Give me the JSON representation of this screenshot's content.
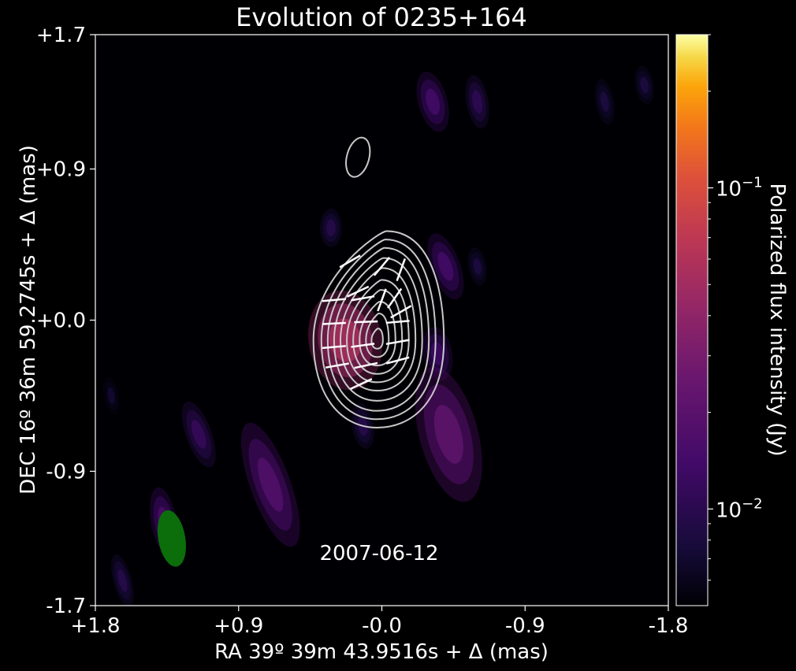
{
  "chart_data": {
    "type": "heatmap",
    "title": "Evolution of 0235+164",
    "xlabel": "RA 39º 39m 43.9516s + Δ (mas)",
    "ylabel": "DEC 16º 36m 59.2745s + Δ (mas)",
    "xlim": [
      1.8,
      -1.8
    ],
    "ylim": [
      -1.7,
      1.7
    ],
    "x_ticks": [
      1.8,
      0.9,
      0.0,
      -0.9,
      -1.8
    ],
    "x_tick_labels": [
      "+1.8",
      "+0.9",
      "-0.0",
      "-0.9",
      "-1.8"
    ],
    "y_ticks": [
      1.7,
      0.9,
      0.0,
      -0.9,
      -1.7
    ],
    "y_tick_labels": [
      "+1.7",
      "+0.9",
      "+0.0",
      "-0.9",
      "-1.7"
    ],
    "date_label": "2007-06-12",
    "colorbar": {
      "label": "Polarized flux intensity (Jy)",
      "scale": "log",
      "range": [
        0.005,
        0.3
      ],
      "colormap": "inferno",
      "tick_labels": [
        {
          "value": 0.1,
          "base": "10",
          "exp": "−1"
        },
        {
          "value": 0.01,
          "base": "10",
          "exp": "−2"
        }
      ]
    },
    "polarized_blobs": [
      {
        "x": 0.23,
        "y": -0.12,
        "rx": 0.2,
        "ry": 0.26,
        "angle": -10,
        "peak": 0.045
      },
      {
        "x": -0.32,
        "y": 1.3,
        "rx": 0.08,
        "ry": 0.16,
        "angle": -15,
        "peak": 0.012
      },
      {
        "x": -0.6,
        "y": 1.3,
        "rx": 0.06,
        "ry": 0.14,
        "angle": -10,
        "peak": 0.009
      },
      {
        "x": -1.4,
        "y": 1.3,
        "rx": 0.05,
        "ry": 0.12,
        "angle": -10,
        "peak": 0.007
      },
      {
        "x": -1.65,
        "y": 1.4,
        "rx": 0.05,
        "ry": 0.1,
        "angle": -10,
        "peak": 0.007
      },
      {
        "x": -0.4,
        "y": 0.32,
        "rx": 0.08,
        "ry": 0.18,
        "angle": -20,
        "peak": 0.012
      },
      {
        "x": -0.35,
        "y": -0.2,
        "rx": 0.08,
        "ry": 0.14,
        "angle": -10,
        "peak": 0.011
      },
      {
        "x": -0.42,
        "y": -0.68,
        "rx": 0.16,
        "ry": 0.36,
        "angle": -15,
        "peak": 0.018
      },
      {
        "x": 0.12,
        "y": -0.63,
        "rx": 0.06,
        "ry": 0.12,
        "angle": -10,
        "peak": 0.008
      },
      {
        "x": 1.15,
        "y": -0.68,
        "rx": 0.07,
        "ry": 0.18,
        "angle": -20,
        "peak": 0.01
      },
      {
        "x": 0.7,
        "y": -0.98,
        "rx": 0.11,
        "ry": 0.34,
        "angle": -20,
        "peak": 0.015
      },
      {
        "x": 1.37,
        "y": -1.2,
        "rx": 0.07,
        "ry": 0.18,
        "angle": -10,
        "peak": 0.013
      },
      {
        "x": 1.63,
        "y": -1.55,
        "rx": 0.05,
        "ry": 0.14,
        "angle": -15,
        "peak": 0.008
      },
      {
        "x": 1.7,
        "y": -0.45,
        "rx": 0.04,
        "ry": 0.1,
        "angle": -10,
        "peak": 0.006
      },
      {
        "x": 0.32,
        "y": 0.55,
        "rx": 0.06,
        "ry": 0.1,
        "angle": 0,
        "peak": 0.008
      },
      {
        "x": -0.6,
        "y": 0.32,
        "rx": 0.05,
        "ry": 0.1,
        "angle": -10,
        "peak": 0.007
      }
    ],
    "total_intensity_contours": {
      "center": {
        "x": 0.03,
        "y": -0.12
      },
      "levels": [
        {
          "rx": 0.4,
          "ry_up": 0.65,
          "ry_down": 0.52
        },
        {
          "rx": 0.35,
          "ry_up": 0.6,
          "ry_down": 0.47
        },
        {
          "rx": 0.31,
          "ry_up": 0.55,
          "ry_down": 0.42
        },
        {
          "rx": 0.27,
          "ry_up": 0.49,
          "ry_down": 0.36
        },
        {
          "rx": 0.23,
          "ry_up": 0.43,
          "ry_down": 0.3
        },
        {
          "rx": 0.19,
          "ry_up": 0.36,
          "ry_down": 0.25
        },
        {
          "rx": 0.15,
          "ry_up": 0.3,
          "ry_down": 0.2
        },
        {
          "rx": 0.11,
          "ry_up": 0.23,
          "ry_down": 0.15
        },
        {
          "rx": 0.07,
          "ry_up": 0.16,
          "ry_down": 0.1
        },
        {
          "rx": 0.035,
          "ry_up": 0.07,
          "ry_down": 0.05
        }
      ],
      "isolated": [
        {
          "x": 0.15,
          "y": 0.97,
          "rx": 0.07,
          "ry": 0.12,
          "angle": 15
        }
      ]
    },
    "evpa_vectors": [
      {
        "x": 0.2,
        "y": 0.35,
        "angle": 30
      },
      {
        "x": 0.0,
        "y": 0.32,
        "angle": 50
      },
      {
        "x": -0.12,
        "y": 0.3,
        "angle": 70
      },
      {
        "x": 0.15,
        "y": 0.17,
        "angle": 25
      },
      {
        "x": -0.08,
        "y": 0.13,
        "angle": 55
      },
      {
        "x": 0.3,
        "y": 0.12,
        "angle": 5
      },
      {
        "x": 0.12,
        "y": 0.13,
        "angle": 10
      },
      {
        "x": -0.12,
        "y": 0.05,
        "angle": 30
      },
      {
        "x": 0.0,
        "y": 0.12,
        "angle": 70
      },
      {
        "x": 0.3,
        "y": -0.02,
        "angle": 3
      },
      {
        "x": 0.1,
        "y": -0.01,
        "angle": 2
      },
      {
        "x": -0.1,
        "y": -0.01,
        "angle": 5
      },
      {
        "x": 0.3,
        "y": -0.16,
        "angle": 5
      },
      {
        "x": 0.12,
        "y": -0.15,
        "angle": 8
      },
      {
        "x": -0.1,
        "y": -0.13,
        "angle": 10
      },
      {
        "x": 0.28,
        "y": -0.27,
        "angle": 10
      },
      {
        "x": 0.1,
        "y": -0.27,
        "angle": 12
      },
      {
        "x": -0.1,
        "y": -0.24,
        "angle": 15
      },
      {
        "x": 0.13,
        "y": -0.38,
        "angle": 25
      }
    ],
    "beam": {
      "x": 1.32,
      "y": -1.3,
      "major": 0.17,
      "minor": 0.085,
      "angle": -10,
      "color": "#0b6e0b"
    }
  }
}
